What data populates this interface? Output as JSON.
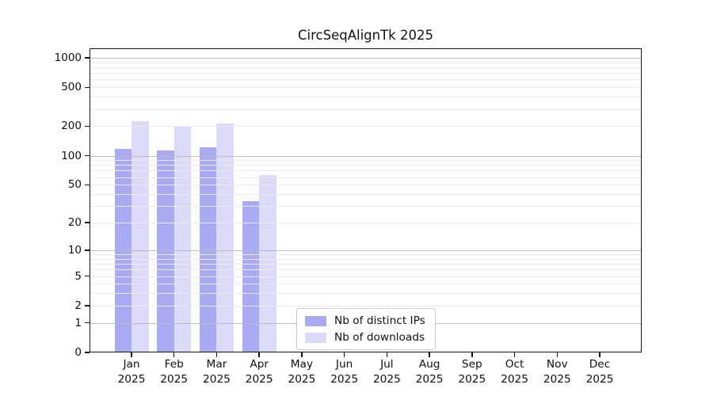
{
  "title": "CircSeqAlignTk 2025",
  "chart_data": {
    "type": "bar",
    "title": "CircSeqAlignTk 2025",
    "categories": [
      "Jan",
      "Feb",
      "Mar",
      "Apr",
      "May",
      "Jun",
      "Jul",
      "Aug",
      "Sep",
      "Oct",
      "Nov",
      "Dec"
    ],
    "year_label": "2025",
    "series": [
      {
        "name": "Nb of distinct IPs",
        "color": "#aaaaf2",
        "values": [
          118,
          114,
          121,
          34,
          0,
          0,
          0,
          0,
          0,
          0,
          0,
          0
        ]
      },
      {
        "name": "Nb of downloads",
        "color": "#dbdbf9",
        "values": [
          225,
          200,
          213,
          63,
          0,
          0,
          0,
          0,
          0,
          0,
          0,
          0
        ]
      }
    ],
    "yscale": "log10(1+v)",
    "ymax": 1250,
    "yticks": [
      0,
      1,
      2,
      5,
      10,
      20,
      50,
      100,
      200,
      500,
      1000
    ],
    "major_gridline_values": [
      1,
      10,
      100,
      1000
    ],
    "minor_gridline_values": [
      2,
      3,
      4,
      5,
      6,
      7,
      8,
      9,
      20,
      30,
      40,
      50,
      60,
      70,
      80,
      90,
      200,
      300,
      400,
      500,
      600,
      700,
      800,
      900
    ],
    "grid": true,
    "legend_position": "lower-center",
    "axis_color": "#141414",
    "major_grid_color": "#bdbdbd",
    "minor_grid_color": "#ebebeb"
  }
}
